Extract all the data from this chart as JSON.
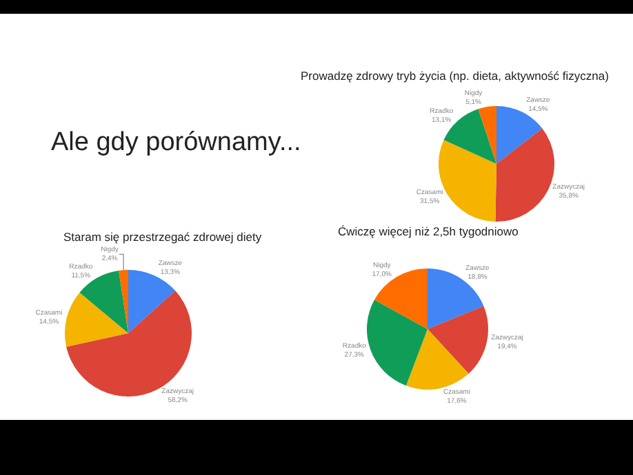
{
  "chart_data": [
    {
      "type": "other",
      "title": "Ale gdy porównamy..."
    },
    {
      "type": "pie",
      "title": "Prowadzę zdrowy tryb życia (np. dieta, aktywność fizyczna)",
      "categories": [
        "Zawsze",
        "Zazwyczaj",
        "Czasami",
        "Rzadko",
        "Nigdy"
      ],
      "values": [
        14.5,
        35.8,
        31.5,
        13.1,
        5.1
      ],
      "value_labels": [
        "14,5%",
        "35,8%",
        "31,5%",
        "13,1%",
        "5,1%"
      ],
      "colors": [
        "#4285f4",
        "#db4437",
        "#f4b400",
        "#0f9d58",
        "#ff6d01"
      ]
    },
    {
      "type": "pie",
      "title": "Staram się przestrzegać zdrowej diety",
      "categories": [
        "Zawsze",
        "Zazwyczaj",
        "Czasami",
        "Rzadko",
        "Nigdy"
      ],
      "values": [
        13.3,
        58.2,
        14.5,
        11.5,
        2.4
      ],
      "value_labels": [
        "13,3%",
        "58,2%",
        "14,5%",
        "11,5%",
        "2,4%"
      ],
      "colors": [
        "#4285f4",
        "#db4437",
        "#f4b400",
        "#0f9d58",
        "#ff6d01"
      ]
    },
    {
      "type": "pie",
      "title": "Ćwiczę więcej niż 2,5h tygodniowo",
      "categories": [
        "Zawsze",
        "Zazwyczaj",
        "Czasami",
        "Rzadko",
        "Nigdy"
      ],
      "values": [
        18.8,
        19.4,
        17.6,
        27.3,
        17.0
      ],
      "value_labels": [
        "18,8%",
        "19,4%",
        "17,6%",
        "27,3%",
        "17,0%"
      ],
      "colors": [
        "#4285f4",
        "#db4437",
        "#f4b400",
        "#0f9d58",
        "#ff6d01"
      ]
    }
  ]
}
